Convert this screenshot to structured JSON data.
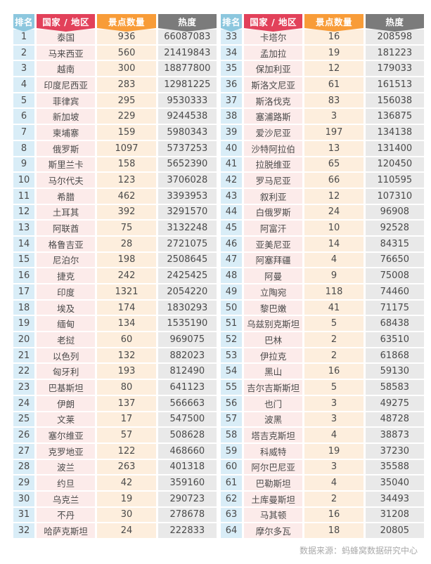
{
  "chart_data": {
    "type": "table",
    "columns": [
      "排名",
      "国家 / 地区",
      "景点数量",
      "热度"
    ],
    "rows": [
      [
        1,
        "泰国",
        936,
        66087083
      ],
      [
        2,
        "马来西亚",
        560,
        21419843
      ],
      [
        3,
        "越南",
        300,
        18877800
      ],
      [
        4,
        "印度尼西亚",
        283,
        12981225
      ],
      [
        5,
        "菲律宾",
        295,
        9530333
      ],
      [
        6,
        "新加坡",
        229,
        9244538
      ],
      [
        7,
        "柬埔寨",
        159,
        5980343
      ],
      [
        8,
        "俄罗斯",
        1097,
        5737253
      ],
      [
        9,
        "斯里兰卡",
        158,
        5652390
      ],
      [
        10,
        "马尔代夫",
        123,
        3706028
      ],
      [
        11,
        "希腊",
        462,
        3393953
      ],
      [
        12,
        "土耳其",
        392,
        3291570
      ],
      [
        13,
        "阿联酋",
        75,
        3132248
      ],
      [
        14,
        "格鲁吉亚",
        28,
        2721075
      ],
      [
        15,
        "尼泊尔",
        198,
        2508645
      ],
      [
        16,
        "捷克",
        242,
        2425425
      ],
      [
        17,
        "印度",
        1321,
        2054220
      ],
      [
        18,
        "埃及",
        174,
        1830293
      ],
      [
        19,
        "缅甸",
        134,
        1535190
      ],
      [
        20,
        "老挝",
        60,
        969075
      ],
      [
        21,
        "以色列",
        132,
        882023
      ],
      [
        22,
        "匈牙利",
        193,
        812490
      ],
      [
        23,
        "巴基斯坦",
        80,
        641123
      ],
      [
        24,
        "伊朗",
        137,
        566663
      ],
      [
        25,
        "文莱",
        17,
        547500
      ],
      [
        26,
        "塞尔维亚",
        57,
        508628
      ],
      [
        27,
        "克罗地亚",
        122,
        468660
      ],
      [
        28,
        "波兰",
        263,
        401318
      ],
      [
        29,
        "约旦",
        42,
        359160
      ],
      [
        30,
        "乌克兰",
        19,
        290723
      ],
      [
        31,
        "不丹",
        30,
        278678
      ],
      [
        32,
        "哈萨克斯坦",
        24,
        222833
      ],
      [
        33,
        "卡塔尔",
        16,
        208598
      ],
      [
        34,
        "孟加拉",
        19,
        181223
      ],
      [
        35,
        "保加利亚",
        12,
        179033
      ],
      [
        36,
        "斯洛文尼亚",
        61,
        161513
      ],
      [
        37,
        "斯洛伐克",
        83,
        156038
      ],
      [
        38,
        "塞浦路斯",
        3,
        136875
      ],
      [
        39,
        "爱沙尼亚",
        197,
        134138
      ],
      [
        40,
        "沙特阿拉伯",
        13,
        131400
      ],
      [
        41,
        "拉脱维亚",
        65,
        120450
      ],
      [
        42,
        "罗马尼亚",
        66,
        110595
      ],
      [
        43,
        "叙利亚",
        12,
        107310
      ],
      [
        44,
        "白俄罗斯",
        24,
        96908
      ],
      [
        45,
        "阿富汗",
        10,
        92528
      ],
      [
        46,
        "亚美尼亚",
        14,
        84315
      ],
      [
        47,
        "阿塞拜疆",
        4,
        76650
      ],
      [
        48,
        "阿曼",
        9,
        75008
      ],
      [
        49,
        "立陶宛",
        118,
        74460
      ],
      [
        50,
        "黎巴嫩",
        41,
        71175
      ],
      [
        51,
        "乌兹别克斯坦",
        5,
        68438
      ],
      [
        52,
        "巴林",
        2,
        63510
      ],
      [
        53,
        "伊拉克",
        2,
        61868
      ],
      [
        54,
        "黑山",
        16,
        59130
      ],
      [
        55,
        "吉尔吉斯斯坦",
        5,
        58583
      ],
      [
        56,
        "也门",
        3,
        49275
      ],
      [
        57,
        "波黑",
        3,
        48728
      ],
      [
        58,
        "塔吉克斯坦",
        4,
        38873
      ],
      [
        59,
        "科威特",
        19,
        37230
      ],
      [
        60,
        "阿尔巴尼亚",
        3,
        35588
      ],
      [
        61,
        "巴勒斯坦",
        4,
        35040
      ],
      [
        62,
        "土库曼斯坦",
        2,
        34493
      ],
      [
        63,
        "马其顿",
        16,
        31208
      ],
      [
        64,
        "摩尔多瓦",
        18,
        20805
      ]
    ]
  },
  "footer": {
    "source": "数据来源：蚂蜂窝数据研究中心"
  },
  "colors": {
    "rank_header": "#8cc7de",
    "country_header": "#e2415a",
    "count_header": "#f89c38",
    "heat_header": "#7b7b7b",
    "rank_cell": "#d9edf7",
    "country_cell": "#fcebea",
    "count_cell": "#fdeedd",
    "heat_cell": "#e9e9e9"
  }
}
